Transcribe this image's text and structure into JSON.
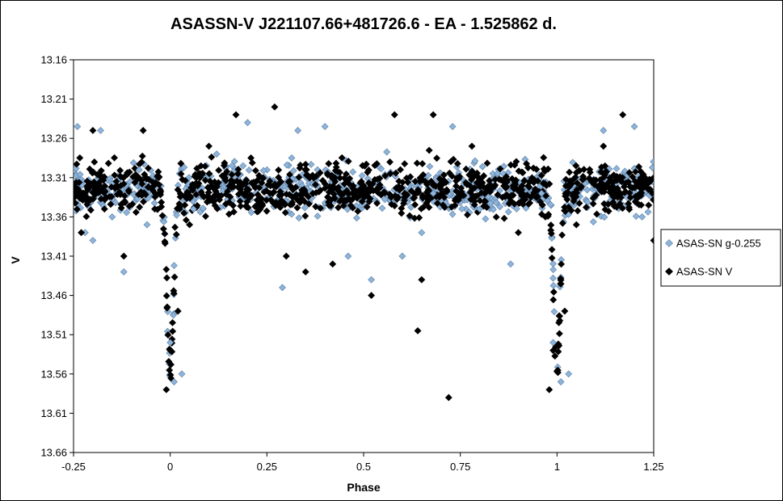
{
  "chart_data": {
    "type": "scatter",
    "title": "ASASSN-V J221107.66+481726.6  - EA - 1.525862  d.",
    "xlabel": "Phase",
    "ylabel": "V",
    "xlim": [
      -0.25,
      1.25
    ],
    "ylim": [
      13.16,
      13.66
    ],
    "y_inverted": true,
    "x_ticks": [
      "-0.25",
      "0",
      "0.25",
      "0.5",
      "0.75",
      "1",
      "1.25"
    ],
    "y_ticks": [
      "13.16",
      "13.21",
      "13.26",
      "13.31",
      "13.36",
      "13.41",
      "13.46",
      "13.51",
      "13.56",
      "13.61",
      "13.66"
    ],
    "grid": false,
    "legend_position": "right",
    "period_days": 1.525862,
    "series": [
      {
        "name": "ASAS-SN g-0.255",
        "marker": "diamond",
        "color": "#8FB4D9",
        "values_sample": [
          [
            -0.24,
            13.245
          ],
          [
            -0.22,
            13.38
          ],
          [
            -0.2,
            13.39
          ],
          [
            -0.18,
            13.25
          ],
          [
            -0.15,
            13.36
          ],
          [
            -0.12,
            13.43
          ],
          [
            -0.08,
            13.3
          ],
          [
            -0.06,
            13.37
          ],
          [
            0.0,
            13.52
          ],
          [
            0.01,
            13.57
          ],
          [
            0.03,
            13.56
          ],
          [
            0.06,
            13.35
          ],
          [
            0.12,
            13.28
          ],
          [
            0.2,
            13.24
          ],
          [
            0.29,
            13.45
          ],
          [
            0.33,
            13.25
          ],
          [
            0.4,
            13.245
          ],
          [
            0.46,
            13.41
          ],
          [
            0.52,
            13.44
          ],
          [
            0.6,
            13.41
          ],
          [
            0.65,
            13.38
          ],
          [
            0.68,
            13.33
          ],
          [
            0.73,
            13.245
          ],
          [
            0.8,
            13.35
          ],
          [
            0.88,
            13.42
          ],
          [
            0.96,
            13.33
          ],
          [
            0.99,
            13.52
          ],
          [
            1.01,
            13.57
          ],
          [
            1.03,
            13.56
          ],
          [
            1.12,
            13.25
          ],
          [
            1.2,
            13.245
          ],
          [
            1.22,
            13.36
          ]
        ]
      },
      {
        "name": "ASAS-SN V",
        "marker": "diamond",
        "color": "#000000",
        "values_sample": [
          [
            -0.23,
            13.38
          ],
          [
            -0.2,
            13.25
          ],
          [
            -0.17,
            13.35
          ],
          [
            -0.12,
            13.41
          ],
          [
            -0.07,
            13.25
          ],
          [
            -0.04,
            13.35
          ],
          [
            0.0,
            13.53
          ],
          [
            -0.01,
            13.58
          ],
          [
            0.02,
            13.48
          ],
          [
            0.05,
            13.37
          ],
          [
            0.1,
            13.27
          ],
          [
            0.17,
            13.23
          ],
          [
            0.27,
            13.22
          ],
          [
            0.3,
            13.41
          ],
          [
            0.35,
            13.43
          ],
          [
            0.42,
            13.42
          ],
          [
            0.52,
            13.46
          ],
          [
            0.58,
            13.23
          ],
          [
            0.64,
            13.505
          ],
          [
            0.65,
            13.44
          ],
          [
            0.68,
            13.23
          ],
          [
            0.72,
            13.59
          ],
          [
            0.78,
            13.27
          ],
          [
            0.9,
            13.38
          ],
          [
            0.97,
            13.36
          ],
          [
            0.99,
            13.53
          ],
          [
            0.98,
            13.58
          ],
          [
            1.02,
            13.48
          ],
          [
            1.05,
            13.37
          ],
          [
            1.12,
            13.27
          ],
          [
            1.17,
            13.23
          ],
          [
            1.25,
            13.39
          ]
        ]
      }
    ]
  }
}
